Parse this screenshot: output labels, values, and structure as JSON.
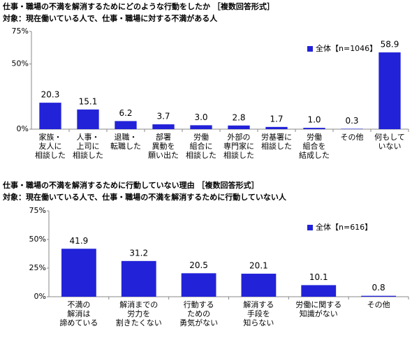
{
  "chart_data": [
    {
      "type": "bar",
      "title": "仕事・職場の不満を解消するためにどのような行動をしたか ［複数回答形式］",
      "subtitle": "対象：現在働いている人で、仕事・職場に対する不満がある人",
      "categories": [
        [
          "家族・",
          "友人に",
          "相談した"
        ],
        [
          "人事・",
          "上司に",
          "相談した"
        ],
        [
          "退職・",
          "転職した"
        ],
        [
          "部署",
          "異動を",
          "願い出た"
        ],
        [
          "労働",
          "組合に",
          "相談した"
        ],
        [
          "外部の",
          "専門家に",
          "相談した"
        ],
        [
          "労基署に",
          "相談した"
        ],
        [
          "労働",
          "組合を",
          "結成した"
        ],
        [
          "その他"
        ],
        [
          "何もして",
          "いない"
        ]
      ],
      "series": [
        {
          "name": "全体【n=1046】",
          "color": "#2222d8",
          "values": [
            20.3,
            15.1,
            6.2,
            3.7,
            3.0,
            2.8,
            1.7,
            1.0,
            0.3,
            58.9
          ],
          "value_labels": [
            "20.3",
            "15.1",
            "6.2",
            "3.7",
            "3.0",
            "2.8",
            "1.7",
            "1.0",
            "0.3",
            "58.9"
          ]
        }
      ],
      "ylim": [
        0,
        75
      ],
      "yticks": [
        {
          "value": 0,
          "label": "0%"
        },
        {
          "value": 50,
          "label": "50%"
        },
        {
          "value": 75,
          "label": "75%"
        }
      ],
      "grid": false,
      "legend": "upper right"
    },
    {
      "type": "bar",
      "title": "仕事・職場の不満を解消するために行動していない理由 ［複数回答形式］",
      "subtitle": "対象：現在働いている人で、仕事・職場の不満を解消するために行動していない人",
      "categories": [
        [
          "不満の",
          "解消は",
          "諦めている"
        ],
        [
          "解消までの",
          "労力を",
          "割きたくない"
        ],
        [
          "行動する",
          "ための",
          "勇気がない"
        ],
        [
          "解消する",
          "手段を",
          "知らない"
        ],
        [
          "労働に関する",
          "知識がない"
        ],
        [
          "その他"
        ]
      ],
      "series": [
        {
          "name": "全体【n=616】",
          "color": "#2222d8",
          "values": [
            41.9,
            31.2,
            20.5,
            20.1,
            10.1,
            0.8
          ],
          "value_labels": [
            "41.9",
            "31.2",
            "20.5",
            "20.1",
            "10.1",
            "0.8"
          ]
        }
      ],
      "ylim": [
        0,
        75
      ],
      "yticks": [
        {
          "value": 0,
          "label": "0%"
        },
        {
          "value": 25,
          "label": "25%"
        },
        {
          "value": 50,
          "label": "50%"
        },
        {
          "value": 75,
          "label": "75%"
        }
      ],
      "grid": false,
      "legend": "upper right"
    }
  ]
}
